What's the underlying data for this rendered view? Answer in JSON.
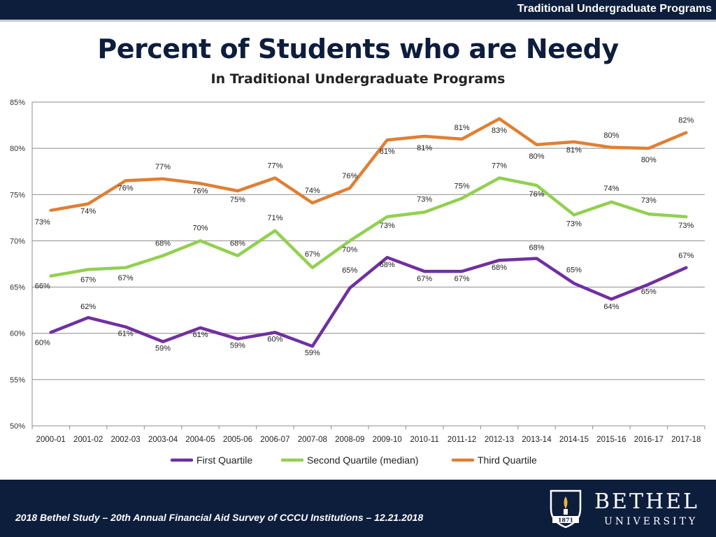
{
  "header": {
    "program_label": "Traditional Undergraduate Programs"
  },
  "colors": {
    "navy": "#0d1d3c",
    "first": "#7030a0",
    "second": "#92d050",
    "third": "#e07f35",
    "gold": "#e9b53f"
  },
  "chart_data": {
    "type": "line",
    "title": "Percent of Students who are Needy",
    "subtitle": "In Traditional Undergraduate Programs",
    "xlabel": "",
    "ylabel": "",
    "ylim": [
      50,
      85
    ],
    "y_ticks": [
      "50%",
      "55%",
      "60%",
      "65%",
      "70%",
      "75%",
      "80%",
      "85%"
    ],
    "grid": true,
    "legend": "bottom",
    "categories": [
      "2000-01",
      "2001-02",
      "2002-03",
      "2003-04",
      "2004-05",
      "2005-06",
      "2006-07",
      "2007-08",
      "2008-09",
      "2009-10",
      "2010-11",
      "2011-12",
      "2012-13",
      "2013-14",
      "2014-15",
      "2015-16",
      "2016-17",
      "2017-18"
    ],
    "series": [
      {
        "name": "First Quartile",
        "color": "#7030a0",
        "values": [
          60.1,
          61.7,
          60.7,
          59.1,
          60.6,
          59.4,
          60.1,
          58.6,
          64.9,
          68.2,
          66.7,
          66.7,
          67.9,
          68.1,
          65.4,
          63.7,
          65.3,
          67.1
        ],
        "labels": [
          "60%",
          "62%",
          "61%",
          "59%",
          "61%",
          "59%",
          "60%",
          "59%",
          "65%",
          "68%",
          "67%",
          "67%",
          "68%",
          "68%",
          "65%",
          "64%",
          "65%",
          "67%"
        ]
      },
      {
        "name": "Second Quartile (median)",
        "color": "#92d050",
        "values": [
          66.2,
          66.9,
          67.1,
          68.4,
          70.0,
          68.4,
          71.1,
          67.1,
          70.0,
          72.6,
          73.1,
          74.6,
          76.8,
          76.0,
          72.8,
          74.2,
          72.9,
          72.6
        ],
        "labels": [
          "66%",
          "67%",
          "67%",
          "68%",
          "70%",
          "68%",
          "71%",
          "67%",
          "70%",
          "73%",
          "73%",
          "75%",
          "77%",
          "76%",
          "73%",
          "74%",
          "73%",
          "73%"
        ]
      },
      {
        "name": "Third Quartile",
        "color": "#e07f35",
        "values": [
          73.3,
          74.0,
          76.5,
          76.7,
          76.2,
          75.4,
          76.8,
          74.1,
          75.7,
          80.9,
          81.3,
          81.0,
          83.2,
          80.4,
          80.7,
          80.1,
          80.0,
          81.7
        ],
        "labels": [
          "73%",
          "74%",
          "76%",
          "77%",
          "76%",
          "75%",
          "77%",
          "74%",
          "76%",
          "81%",
          "81%",
          "81%",
          "83%",
          "80%",
          "81%",
          "80%",
          "80%",
          "82%"
        ]
      }
    ]
  },
  "footer": {
    "caption": "2018 Bethel Study – 20th Annual Financial Aid Survey of CCCU Institutions – 12.21.2018",
    "logo_word1": "BETHEL",
    "logo_word2": "UNIVERSITY",
    "logo_year": "1871"
  }
}
